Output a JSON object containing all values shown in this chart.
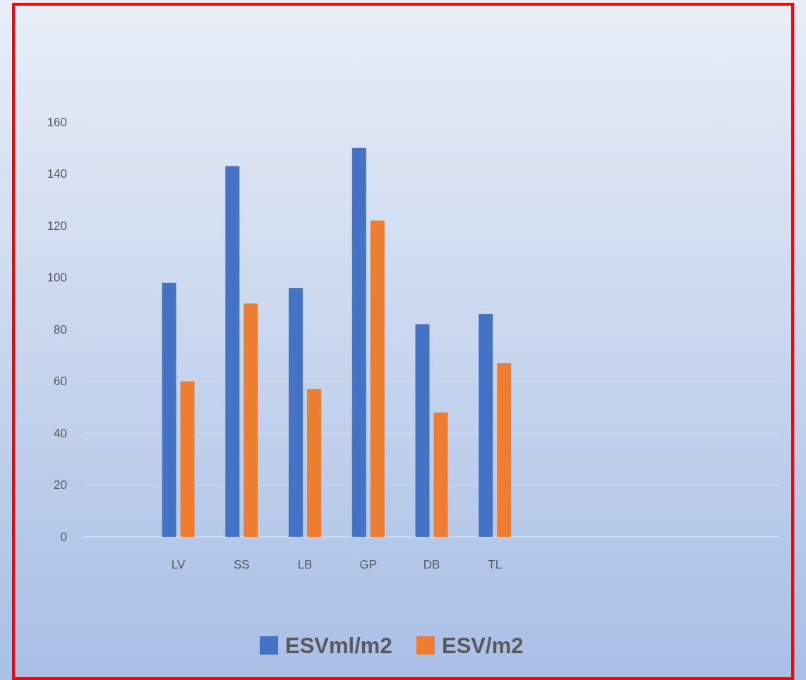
{
  "chart_data": {
    "type": "bar",
    "categories": [
      null,
      "LV",
      "SS",
      "LB",
      "GP",
      "DB",
      "TL",
      null,
      null,
      null,
      null
    ],
    "series": [
      {
        "name": "ESVml/m2",
        "color": "#4472c4",
        "values": [
          null,
          98,
          143,
          96,
          150,
          82,
          86,
          null,
          null,
          null,
          null
        ]
      },
      {
        "name": "ESV/m2",
        "color": "#ed7d31",
        "values": [
          null,
          60,
          90,
          57,
          122,
          48,
          67,
          null,
          null,
          null,
          null
        ]
      }
    ],
    "ylim": [
      0,
      160
    ],
    "yticks": [
      0,
      20,
      40,
      60,
      80,
      100,
      120,
      140,
      160
    ],
    "grid": "y",
    "legend": "bottom"
  }
}
